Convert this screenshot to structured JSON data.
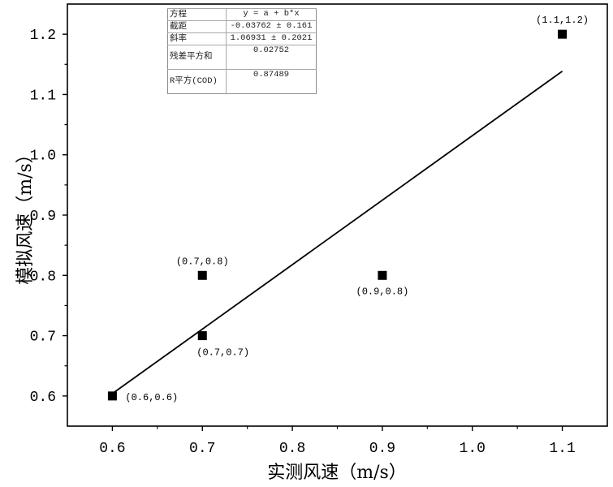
{
  "chart_data": {
    "type": "scatter",
    "points": [
      {
        "x": 0.6,
        "y": 0.6,
        "label": "(0.6,0.6)",
        "label_position": "right"
      },
      {
        "x": 0.7,
        "y": 0.7,
        "label": "(0.7,0.7)",
        "label_position": "below-right"
      },
      {
        "x": 0.7,
        "y": 0.8,
        "label": "(0.7,0.8)",
        "label_position": "above"
      },
      {
        "x": 0.9,
        "y": 0.8,
        "label": "(0.9,0.8)",
        "label_position": "below"
      },
      {
        "x": 1.1,
        "y": 1.2,
        "label": "(1.1,1.2)",
        "label_position": "above"
      }
    ],
    "fit_line": {
      "intercept": -0.03762,
      "slope": 1.06931,
      "x_start": 0.6,
      "x_end": 1.1
    },
    "xlabel": "实测风速（m/s）",
    "ylabel": "模拟风速（m/s）",
    "xlim": [
      0.55,
      1.15
    ],
    "ylim": [
      0.55,
      1.25
    ],
    "xticks": [
      "0.6",
      "0.7",
      "0.8",
      "0.9",
      "1.0",
      "1.1"
    ],
    "yticks": [
      "0.6",
      "0.7",
      "0.8",
      "0.9",
      "1.0",
      "1.1",
      "1.2"
    ],
    "grid": false,
    "minor_ticks": true,
    "stats_table_placement": "top-left",
    "stats_table": [
      {
        "label": "方程",
        "value": "y = a + b*x"
      },
      {
        "label": "截距",
        "value": "-0.03762 ± 0.161"
      },
      {
        "label": "斜率",
        "value": "1.06931 ± 0.2021"
      },
      {
        "label": "残差平方和",
        "value": "0.02752"
      },
      {
        "label": "R平方(COD)",
        "value": "0.87489"
      }
    ],
    "colors": {
      "marker": "#000000",
      "fit_line": "#000000",
      "frame": "#000000"
    },
    "marker_shape": "square"
  }
}
